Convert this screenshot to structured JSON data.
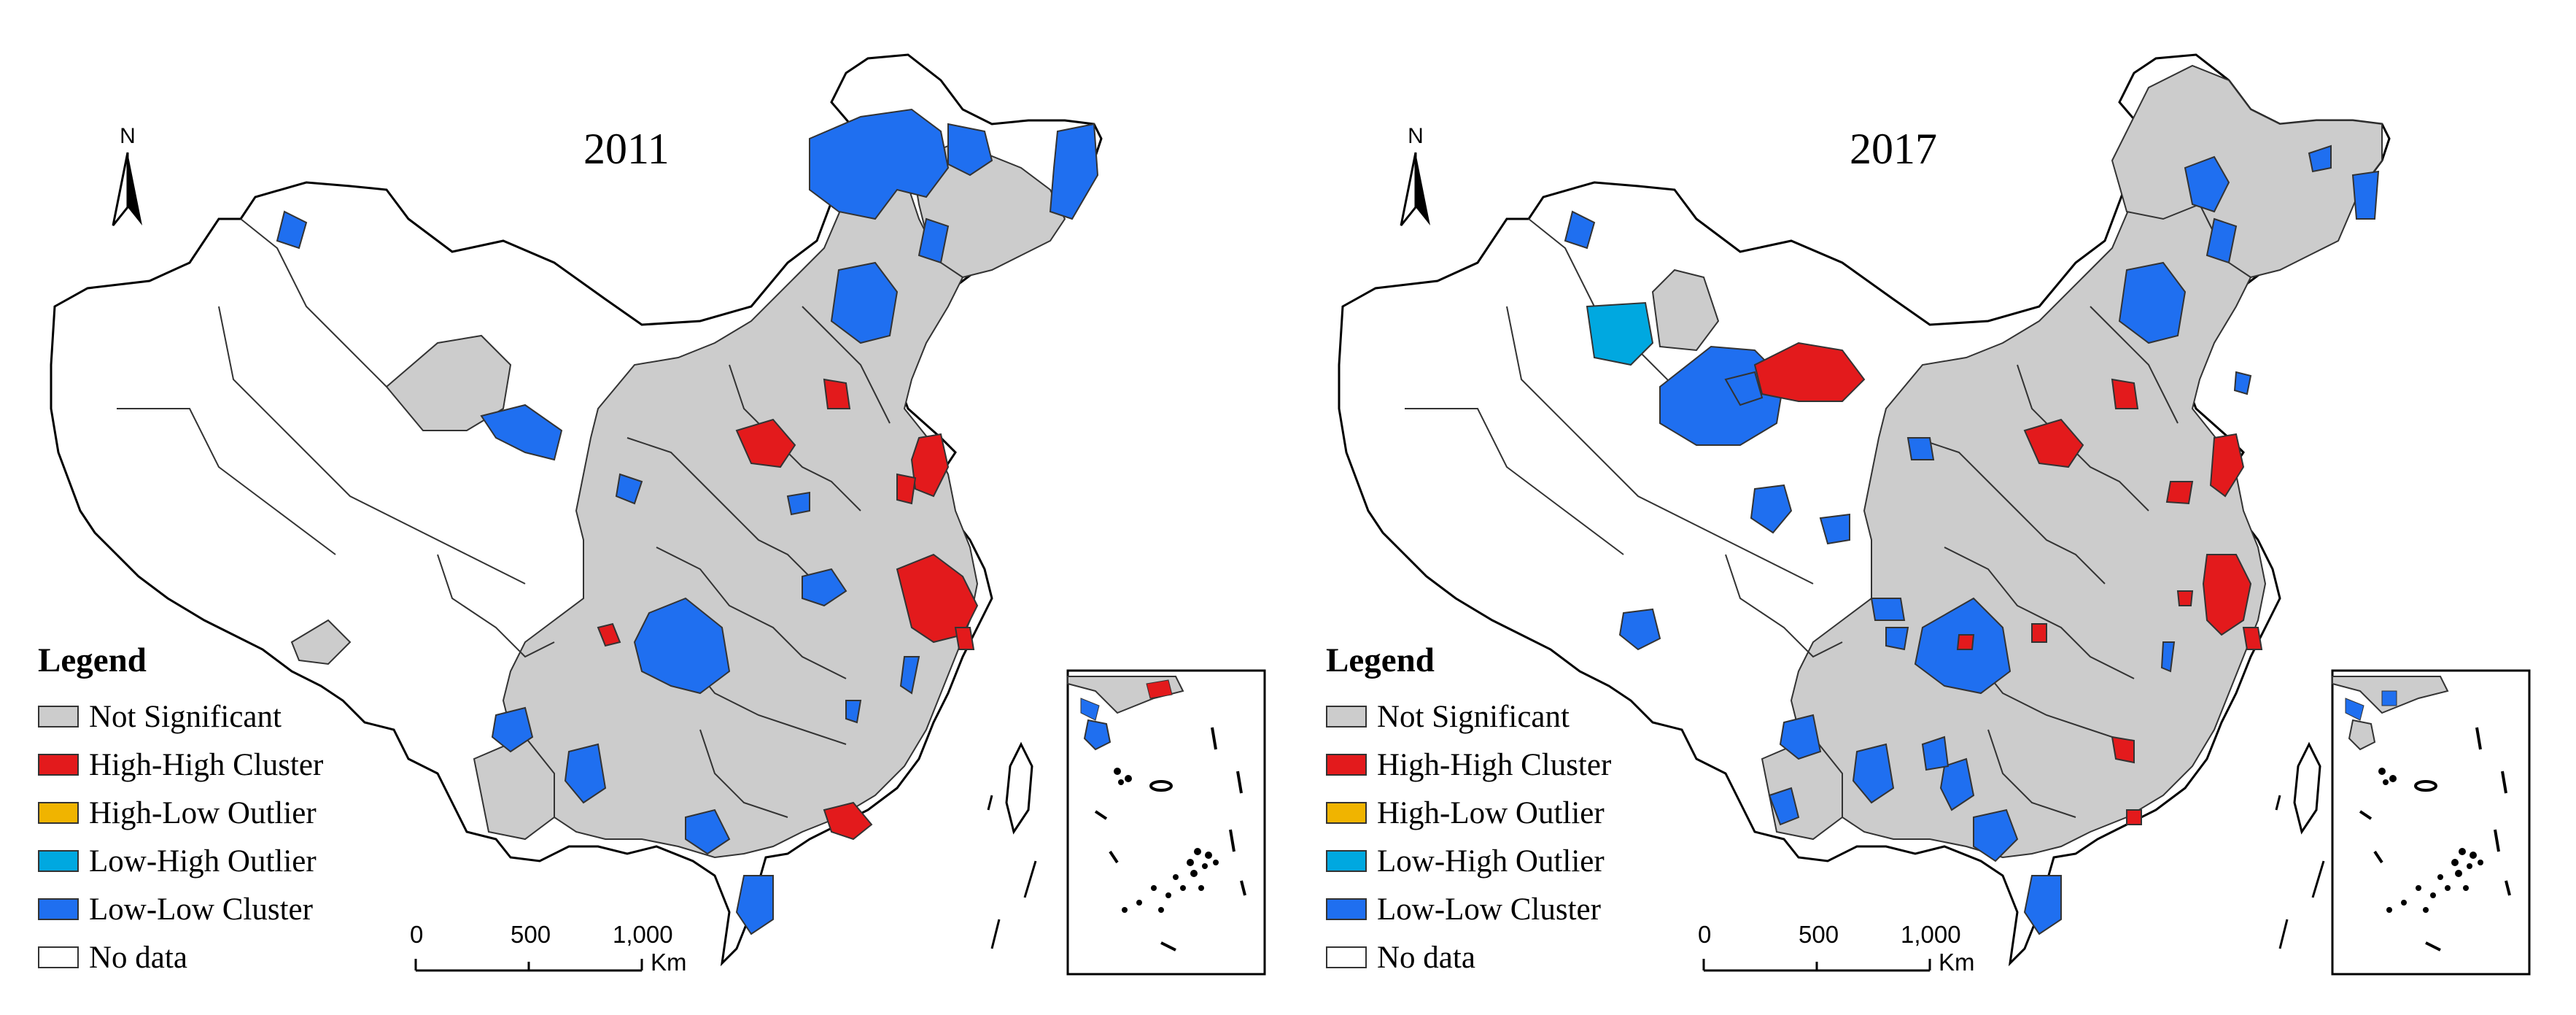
{
  "colors": {
    "not_significant": "#cccccc",
    "high_high": "#e31a1c",
    "high_low": "#f0b400",
    "low_high": "#00a8e0",
    "low_low": "#1f6ff0",
    "no_data": "#ffffff"
  },
  "panels": [
    {
      "year": "2011",
      "legend": {
        "title": "Legend",
        "items": [
          {
            "label": "Not Significant",
            "key": "not_significant"
          },
          {
            "label": "High-High Cluster",
            "key": "high_high"
          },
          {
            "label": "High-Low Outlier",
            "key": "high_low"
          },
          {
            "label": "Low-High Outlier",
            "key": "low_high"
          },
          {
            "label": "Low-Low Cluster",
            "key": "low_low"
          },
          {
            "label": "No data",
            "key": "no_data"
          }
        ]
      },
      "scale": {
        "ticks": [
          "0",
          "500",
          "1,000"
        ],
        "unit": "Km"
      },
      "north_label": "N"
    },
    {
      "year": "2017",
      "legend": {
        "title": "Legend",
        "items": [
          {
            "label": "Not Significant",
            "key": "not_significant"
          },
          {
            "label": "High-High Cluster",
            "key": "high_high"
          },
          {
            "label": "High-Low Outlier",
            "key": "high_low"
          },
          {
            "label": "Low-High Outlier",
            "key": "low_high"
          },
          {
            "label": "Low-Low Cluster",
            "key": "low_low"
          },
          {
            "label": "No data",
            "key": "no_data"
          }
        ]
      },
      "scale": {
        "ticks": [
          "0",
          "500",
          "1,000"
        ],
        "unit": "Km"
      },
      "north_label": "N"
    }
  ]
}
